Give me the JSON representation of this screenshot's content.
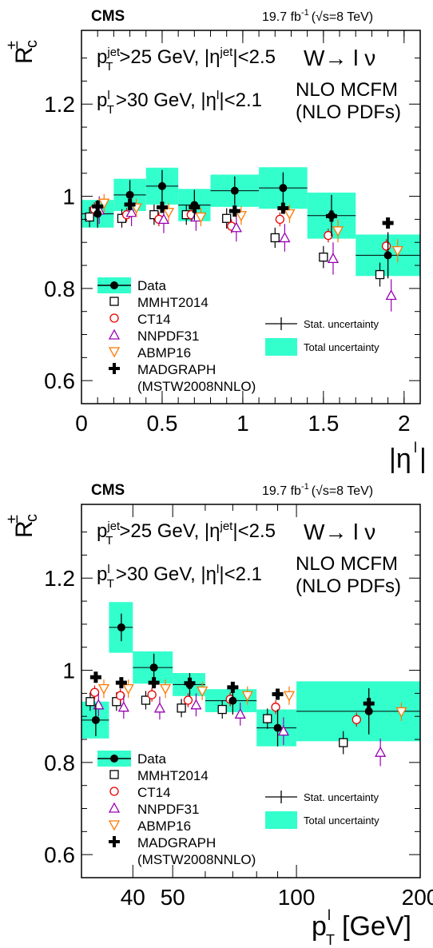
{
  "colors": {
    "band": "#33ffcc",
    "data": "#000000",
    "mmht": "#000000",
    "ct14": "#e60000",
    "nnpdf": "#9900b3",
    "abmp": "#ff7700",
    "madgraph": "#000000"
  },
  "header": {
    "experiment": "CMS",
    "lumi_text": "19.7 fb",
    "lumi_sup": "-1",
    "energy_text": "(√s=8 TeV)"
  },
  "labels": {
    "ylabel_main": "R",
    "ylabel_sup": "±",
    "ylabel_sub": "c",
    "cut_jet": "p",
    "cut_jet_sup": "jet",
    "cut_jet_sub": "T",
    "cut_jet_rest": ">25 GeV, |η",
    "cut_jet_rest_sup": "jet",
    "cut_jet_end": "|<2.5",
    "cut_lep": "p",
    "cut_lep_sup": "l",
    "cut_lep_sub": "T",
    "cut_lep_rest": ">30 GeV, |η",
    "cut_lep_rest_sup": "l",
    "cut_lep_end": "|<2.1",
    "process": "W→ l ν",
    "theory_line1": "NLO MCFM",
    "theory_line2": "(NLO PDFs)"
  },
  "legend": {
    "data": "Data",
    "mmht": "MMHT2014",
    "ct14": "CT14",
    "nnpdf": "NNPDF31",
    "abmp": "ABMP16",
    "madgraph_line1": "MADGRAPH",
    "madgraph_line2": "(MSTW2008NNLO)",
    "stat": "Stat. uncertainty",
    "total": "Total uncertainty"
  },
  "chart_data": [
    {
      "type": "scatter",
      "xlabel": "|ηl|",
      "ylabel": "R±c",
      "xlim": [
        0,
        2.1
      ],
      "ylim": [
        0.55,
        1.36
      ],
      "x_ticks": [
        "0",
        "0.5",
        "1",
        "1.5",
        "2"
      ],
      "y_ticks": [
        "0.6",
        "0.8",
        "1",
        "1.2"
      ],
      "bins": [
        [
          0,
          0.2
        ],
        [
          0.2,
          0.4
        ],
        [
          0.4,
          0.6
        ],
        [
          0.6,
          0.8
        ],
        [
          0.8,
          1.1
        ],
        [
          1.1,
          1.4
        ],
        [
          1.4,
          1.7
        ],
        [
          1.7,
          2.1
        ]
      ],
      "series": [
        {
          "name": "Data",
          "x": [
            0.1,
            0.3,
            0.5,
            0.7,
            0.95,
            1.25,
            1.55,
            1.9
          ],
          "values": [
            0.962,
            1.003,
            1.022,
            0.981,
            1.012,
            1.018,
            0.958,
            0.872
          ],
          "stat_err": [
            0.03,
            0.032,
            0.035,
            0.033,
            0.031,
            0.034,
            0.045,
            0.05
          ],
          "total_err": [
            0.03,
            0.035,
            0.04,
            0.035,
            0.035,
            0.045,
            0.05,
            0.045
          ]
        },
        {
          "name": "MMHT2014",
          "x": [
            0.05,
            0.25,
            0.45,
            0.65,
            0.9,
            1.2,
            1.5,
            1.85
          ],
          "values": [
            0.955,
            0.952,
            0.96,
            0.96,
            0.952,
            0.91,
            0.868,
            0.83
          ],
          "err": [
            0.022,
            0.02,
            0.022,
            0.022,
            0.022,
            0.022,
            0.024,
            0.026
          ]
        },
        {
          "name": "CT14",
          "x": [
            0.08,
            0.28,
            0.48,
            0.68,
            0.93,
            1.23,
            1.53,
            1.89
          ],
          "values": [
            0.972,
            0.96,
            0.95,
            0.96,
            0.935,
            0.95,
            0.915,
            0.892
          ],
          "err": [
            0.015,
            0.015,
            0.015,
            0.015,
            0.015,
            0.015,
            0.015,
            0.015
          ]
        },
        {
          "name": "NNPDF31",
          "x": [
            0.11,
            0.31,
            0.51,
            0.71,
            0.96,
            1.26,
            1.56,
            1.92
          ],
          "values": [
            0.97,
            0.965,
            0.95,
            0.955,
            0.932,
            0.91,
            0.865,
            0.785
          ],
          "err": [
            0.03,
            0.03,
            0.03,
            0.03,
            0.03,
            0.03,
            0.035,
            0.035
          ]
        },
        {
          "name": "ABMP16",
          "x": [
            0.14,
            0.34,
            0.54,
            0.74,
            0.99,
            1.29,
            1.59,
            1.96
          ],
          "values": [
            0.985,
            0.975,
            0.965,
            0.955,
            0.958,
            0.962,
            0.925,
            0.882
          ],
          "err": [
            0.02,
            0.02,
            0.02,
            0.02,
            0.02,
            0.02,
            0.025,
            0.025
          ]
        },
        {
          "name": "MADGRAPH (MSTW2008NNLO)",
          "x": [
            0.1,
            0.3,
            0.5,
            0.7,
            0.95,
            1.25,
            1.55,
            1.9
          ],
          "values": [
            0.978,
            0.982,
            0.976,
            0.976,
            0.968,
            0.974,
            0.957,
            0.942
          ]
        }
      ]
    },
    {
      "type": "scatter",
      "xlabel": "pT l [GeV]",
      "ylabel": "R±c",
      "x_scale": "log",
      "xlim": [
        30,
        200
      ],
      "ylim": [
        0.55,
        1.36
      ],
      "x_ticks": [
        "40",
        "50",
        "100",
        "200"
      ],
      "y_ticks": [
        "0.6",
        "0.8",
        "1",
        "1.2"
      ],
      "bins": [
        [
          30,
          35
        ],
        [
          35,
          40
        ],
        [
          40,
          50
        ],
        [
          50,
          60
        ],
        [
          60,
          80
        ],
        [
          80,
          100
        ],
        [
          100,
          200
        ]
      ],
      "series": [
        {
          "name": "Data",
          "x": [
            32.5,
            37.5,
            45,
            55,
            70,
            90,
            150
          ],
          "values": [
            0.892,
            1.093,
            1.006,
            0.969,
            0.934,
            0.875,
            0.911
          ],
          "stat_err": [
            0.035,
            0.03,
            0.03,
            0.025,
            0.03,
            0.04,
            0.05
          ],
          "total_err": [
            0.04,
            0.055,
            0.035,
            0.025,
            0.025,
            0.04,
            0.065
          ]
        },
        {
          "name": "MMHT2014",
          "x": [
            31.5,
            36.5,
            43,
            52.5,
            66,
            85,
            130
          ],
          "values": [
            0.932,
            0.932,
            0.935,
            0.918,
            0.915,
            0.895,
            0.843
          ],
          "err": [
            0.02,
            0.02,
            0.02,
            0.02,
            0.02,
            0.022,
            0.025
          ]
        },
        {
          "name": "CT14",
          "x": [
            32.3,
            37.3,
            44.5,
            54.5,
            69,
            89,
            140
          ],
          "values": [
            0.952,
            0.945,
            0.947,
            0.935,
            0.937,
            0.92,
            0.893
          ],
          "err": [
            0.015,
            0.015,
            0.015,
            0.015,
            0.015,
            0.015,
            0.015
          ]
        },
        {
          "name": "NNPDF31",
          "x": [
            33,
            38,
            46.5,
            57,
            73,
            93,
            160
          ],
          "values": [
            0.925,
            0.92,
            0.918,
            0.925,
            0.905,
            0.868,
            0.822
          ],
          "err": [
            0.025,
            0.025,
            0.025,
            0.025,
            0.025,
            0.03,
            0.03
          ]
        },
        {
          "name": "ABMP16",
          "x": [
            34,
            39,
            48,
            59,
            76,
            96,
            180
          ],
          "values": [
            0.96,
            0.96,
            0.96,
            0.955,
            0.945,
            0.945,
            0.91
          ],
          "err": [
            0.02,
            0.02,
            0.02,
            0.02,
            0.02,
            0.02,
            0.02
          ]
        },
        {
          "name": "MADGRAPH (MSTW2008NNLO)",
          "x": [
            32.5,
            37.5,
            45,
            55,
            70,
            90,
            150
          ],
          "values": [
            0.985,
            0.973,
            0.973,
            0.972,
            0.963,
            0.948,
            0.928
          ]
        }
      ]
    }
  ]
}
